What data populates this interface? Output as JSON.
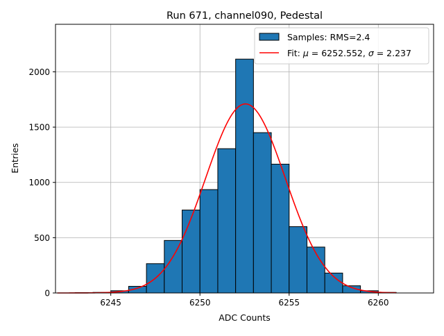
{
  "chart_data": {
    "type": "bar",
    "title": "Run 671, channel090, Pedestal",
    "xlabel": "ADC Counts",
    "ylabel": "Entries",
    "xlim": [
      6241.9,
      6263.1
    ],
    "ylim": [
      0,
      2430
    ],
    "xticks": [
      6245,
      6250,
      6255,
      6260
    ],
    "yticks": [
      0,
      500,
      1000,
      1500,
      2000
    ],
    "grid": true,
    "legend_position": "top-right",
    "colors": {
      "bar_fill": "#1f77b4",
      "bar_edge": "#000000",
      "fit_line": "#ff0000",
      "grid": "#b0b0b0"
    },
    "bin_width": 1,
    "bins": [
      {
        "left": 6242,
        "count": 0
      },
      {
        "left": 6243,
        "count": 3
      },
      {
        "left": 6244,
        "count": 5
      },
      {
        "left": 6245,
        "count": 20
      },
      {
        "left": 6246,
        "count": 60
      },
      {
        "left": 6247,
        "count": 265
      },
      {
        "left": 6248,
        "count": 475
      },
      {
        "left": 6249,
        "count": 750
      },
      {
        "left": 6250,
        "count": 935
      },
      {
        "left": 6251,
        "count": 1305
      },
      {
        "left": 6252,
        "count": 2115
      },
      {
        "left": 6253,
        "count": 1450
      },
      {
        "left": 6254,
        "count": 1165
      },
      {
        "left": 6255,
        "count": 600
      },
      {
        "left": 6256,
        "count": 415
      },
      {
        "left": 6257,
        "count": 180
      },
      {
        "left": 6258,
        "count": 65
      },
      {
        "left": 6259,
        "count": 20
      },
      {
        "left": 6260,
        "count": 5
      }
    ],
    "fit": {
      "mu": 6252.552,
      "sigma": 2.237,
      "amplitude": 1710,
      "x_range": [
        6242,
        6261
      ]
    },
    "legend": [
      {
        "kind": "patch",
        "label": "Samples: RMS=2.4"
      },
      {
        "kind": "line",
        "label_prefix": "Fit: ",
        "mu_symbol": "μ",
        "mu_text": " = 6252.552, ",
        "sigma_symbol": "σ",
        "sigma_text": " = 2.237"
      }
    ]
  }
}
